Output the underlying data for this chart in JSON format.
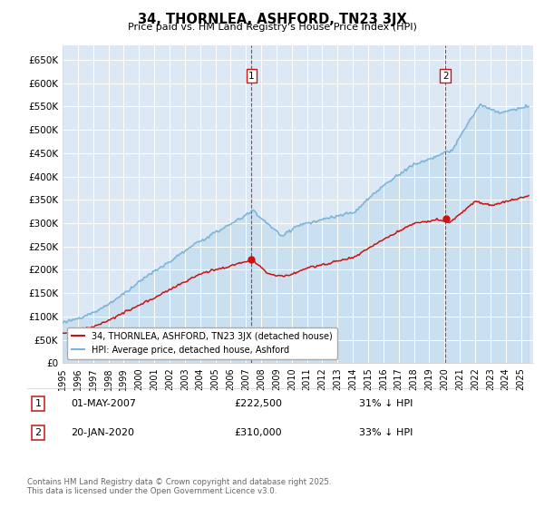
{
  "title": "34, THORNLEA, ASHFORD, TN23 3JX",
  "subtitle": "Price paid vs. HM Land Registry's House Price Index (HPI)",
  "ylim": [
    0,
    680000
  ],
  "yticks": [
    0,
    50000,
    100000,
    150000,
    200000,
    250000,
    300000,
    350000,
    400000,
    450000,
    500000,
    550000,
    600000,
    650000
  ],
  "ytick_labels": [
    "£0",
    "£50K",
    "£100K",
    "£150K",
    "£200K",
    "£250K",
    "£300K",
    "£350K",
    "£400K",
    "£450K",
    "£500K",
    "£550K",
    "£600K",
    "£650K"
  ],
  "background_color": "#ffffff",
  "plot_background_color": "#dce9f5",
  "grid_color": "#ffffff",
  "hpi_color": "#7ab3d9",
  "price_color": "#cc1111",
  "vline_color": "#cc1111",
  "sale1": {
    "date_num": 2007.37,
    "price": 222500,
    "label": "1",
    "date_str": "01-MAY-2007",
    "pct": "31% ↓ HPI",
    "price_at_sale": 222500
  },
  "sale2": {
    "date_num": 2020.05,
    "price": 310000,
    "label": "2",
    "date_str": "20-JAN-2020",
    "pct": "33% ↓ HPI",
    "price_at_sale": 310000
  },
  "legend_property": "34, THORNLEA, ASHFORD, TN23 3JX (detached house)",
  "legend_hpi": "HPI: Average price, detached house, Ashford",
  "footnote": "Contains HM Land Registry data © Crown copyright and database right 2025.\nThis data is licensed under the Open Government Licence v3.0.",
  "xmin": 1995,
  "xmax": 2025.8
}
